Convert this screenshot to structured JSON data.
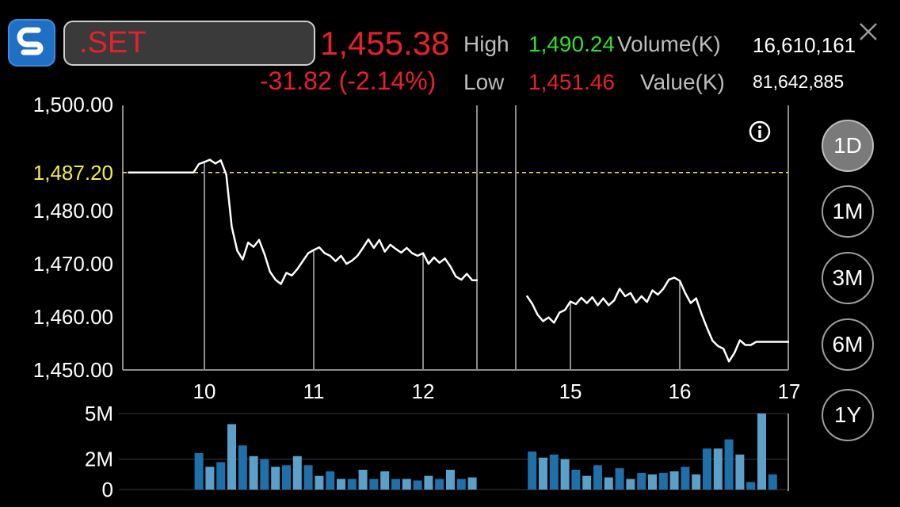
{
  "header": {
    "symbol": ".SET",
    "last_price": "1,455.38",
    "change": "-31.82 (-2.14%)",
    "high_label": "High",
    "high_value": "1,490.24",
    "low_label": "Low",
    "low_value": "1,451.46",
    "volume_label": "Volume(K)",
    "volume_value": "16,610,161",
    "value_label": "Value(K)",
    "value_value": "81,642,885"
  },
  "periods": [
    {
      "label": "1D",
      "active": true
    },
    {
      "label": "1M",
      "active": false
    },
    {
      "label": "3M",
      "active": false
    },
    {
      "label": "6M",
      "active": false
    },
    {
      "label": "1Y",
      "active": false
    }
  ],
  "colors": {
    "down": "#e8202a",
    "up": "#2ee02e",
    "reference": "#f2ec4c",
    "line": "#ffffff",
    "volume_dark": "#1f6fa8",
    "volume_light": "#5aa0c8"
  },
  "chart_data": [
    {
      "type": "line",
      "y_ticks": [
        "1,500.00",
        "1,480.00",
        "1,470.00",
        "1,460.00",
        "1,450.00"
      ],
      "y_tick_values": [
        1500,
        1480,
        1470,
        1460,
        1450
      ],
      "ylim": [
        1450,
        1500
      ],
      "x_ticks": [
        "10",
        "11",
        "12",
        "15",
        "16",
        "17"
      ],
      "reference_value": 1487.2,
      "reference_label": "1,487.20",
      "session1": [
        [
          9.3,
          1487.2
        ],
        [
          9.9,
          1487.2
        ],
        [
          9.95,
          1488.8
        ],
        [
          10.0,
          1489.2
        ],
        [
          10.05,
          1489.6
        ],
        [
          10.1,
          1488.9
        ],
        [
          10.15,
          1489.5
        ],
        [
          10.2,
          1486.8
        ],
        [
          10.25,
          1477.0
        ],
        [
          10.3,
          1472.5
        ],
        [
          10.35,
          1470.8
        ],
        [
          10.4,
          1474.0
        ],
        [
          10.45,
          1473.2
        ],
        [
          10.5,
          1474.5
        ],
        [
          10.55,
          1471.8
        ],
        [
          10.6,
          1468.5
        ],
        [
          10.65,
          1467.0
        ],
        [
          10.7,
          1466.2
        ],
        [
          10.75,
          1468.3
        ],
        [
          10.8,
          1467.8
        ],
        [
          10.85,
          1469.0
        ],
        [
          10.9,
          1470.5
        ],
        [
          10.95,
          1472.0
        ],
        [
          11.0,
          1472.6
        ],
        [
          11.05,
          1473.1
        ],
        [
          11.1,
          1472.0
        ],
        [
          11.15,
          1471.5
        ],
        [
          11.2,
          1470.5
        ],
        [
          11.25,
          1471.5
        ],
        [
          11.3,
          1470.0
        ],
        [
          11.35,
          1470.6
        ],
        [
          11.4,
          1471.5
        ],
        [
          11.45,
          1473.0
        ],
        [
          11.5,
          1474.6
        ],
        [
          11.55,
          1473.0
        ],
        [
          11.6,
          1474.5
        ],
        [
          11.65,
          1472.3
        ],
        [
          11.7,
          1473.6
        ],
        [
          11.75,
          1472.8
        ],
        [
          11.8,
          1472.1
        ],
        [
          11.85,
          1473.0
        ],
        [
          11.9,
          1472.0
        ],
        [
          11.95,
          1471.5
        ],
        [
          12.0,
          1472.0
        ],
        [
          12.05,
          1470.0
        ],
        [
          12.1,
          1471.2
        ],
        [
          12.15,
          1470.2
        ],
        [
          12.2,
          1471.0
        ],
        [
          12.25,
          1469.5
        ],
        [
          12.3,
          1467.6
        ],
        [
          12.35,
          1467.0
        ],
        [
          12.4,
          1468.1
        ],
        [
          12.45,
          1466.9
        ],
        [
          12.5,
          1466.9
        ]
      ],
      "session2": [
        [
          14.6,
          1464.0
        ],
        [
          14.65,
          1462.5
        ],
        [
          14.7,
          1460.4
        ],
        [
          14.75,
          1459.2
        ],
        [
          14.8,
          1459.9
        ],
        [
          14.85,
          1458.9
        ],
        [
          14.9,
          1460.8
        ],
        [
          14.95,
          1461.3
        ],
        [
          15.0,
          1462.9
        ],
        [
          15.05,
          1462.4
        ],
        [
          15.1,
          1463.6
        ],
        [
          15.15,
          1462.6
        ],
        [
          15.2,
          1463.7
        ],
        [
          15.25,
          1462.2
        ],
        [
          15.3,
          1463.5
        ],
        [
          15.35,
          1462.2
        ],
        [
          15.4,
          1463.1
        ],
        [
          15.45,
          1465.3
        ],
        [
          15.5,
          1463.9
        ],
        [
          15.55,
          1464.5
        ],
        [
          15.6,
          1462.7
        ],
        [
          15.65,
          1463.9
        ],
        [
          15.7,
          1462.8
        ],
        [
          15.75,
          1465.0
        ],
        [
          15.8,
          1464.2
        ],
        [
          15.85,
          1465.3
        ],
        [
          15.9,
          1467.0
        ],
        [
          15.95,
          1467.4
        ],
        [
          16.0,
          1466.8
        ],
        [
          16.05,
          1464.5
        ],
        [
          16.1,
          1462.6
        ],
        [
          16.15,
          1463.5
        ],
        [
          16.2,
          1460.5
        ],
        [
          16.25,
          1457.9
        ],
        [
          16.3,
          1455.5
        ],
        [
          16.35,
          1454.5
        ],
        [
          16.4,
          1454.0
        ],
        [
          16.45,
          1451.6
        ],
        [
          16.5,
          1453.2
        ],
        [
          16.55,
          1455.6
        ],
        [
          16.6,
          1454.7
        ],
        [
          16.65,
          1454.7
        ],
        [
          16.7,
          1455.3
        ],
        [
          17.0,
          1455.3
        ]
      ]
    },
    {
      "type": "bar",
      "y_ticks": [
        "5M",
        "2M",
        "0"
      ],
      "bars": [
        [
          9.95,
          2.4,
          "dark"
        ],
        [
          10.05,
          1.5,
          "light"
        ],
        [
          10.15,
          1.8,
          "dark"
        ],
        [
          10.25,
          4.3,
          "light"
        ],
        [
          10.35,
          2.9,
          "dark"
        ],
        [
          10.45,
          2.2,
          "light"
        ],
        [
          10.55,
          2.0,
          "dark"
        ],
        [
          10.65,
          1.5,
          "light"
        ],
        [
          10.75,
          1.6,
          "dark"
        ],
        [
          10.85,
          2.2,
          "light"
        ],
        [
          10.95,
          1.6,
          "dark"
        ],
        [
          11.05,
          0.9,
          "light"
        ],
        [
          11.15,
          1.2,
          "dark"
        ],
        [
          11.25,
          0.7,
          "light"
        ],
        [
          11.35,
          0.7,
          "dark"
        ],
        [
          11.45,
          1.3,
          "light"
        ],
        [
          11.55,
          0.7,
          "dark"
        ],
        [
          11.65,
          1.2,
          "light"
        ],
        [
          11.75,
          0.7,
          "dark"
        ],
        [
          11.85,
          0.7,
          "light"
        ],
        [
          11.95,
          0.6,
          "dark"
        ],
        [
          12.05,
          0.9,
          "light"
        ],
        [
          12.15,
          0.7,
          "dark"
        ],
        [
          12.25,
          1.3,
          "light"
        ],
        [
          12.35,
          0.7,
          "dark"
        ],
        [
          12.45,
          0.8,
          "light"
        ],
        [
          14.65,
          2.5,
          "dark"
        ],
        [
          14.75,
          2.1,
          "light"
        ],
        [
          14.85,
          2.3,
          "dark"
        ],
        [
          14.95,
          2.0,
          "light"
        ],
        [
          15.05,
          1.3,
          "dark"
        ],
        [
          15.15,
          0.9,
          "light"
        ],
        [
          15.25,
          1.6,
          "dark"
        ],
        [
          15.35,
          0.8,
          "light"
        ],
        [
          15.45,
          1.4,
          "dark"
        ],
        [
          15.55,
          0.7,
          "light"
        ],
        [
          15.65,
          1.1,
          "dark"
        ],
        [
          15.75,
          1.0,
          "light"
        ],
        [
          15.85,
          1.1,
          "dark"
        ],
        [
          15.95,
          1.2,
          "light"
        ],
        [
          16.05,
          1.5,
          "dark"
        ],
        [
          16.15,
          1.0,
          "light"
        ],
        [
          16.25,
          2.7,
          "dark"
        ],
        [
          16.35,
          2.7,
          "light"
        ],
        [
          16.45,
          3.3,
          "dark"
        ],
        [
          16.55,
          2.3,
          "light"
        ],
        [
          16.65,
          0.5,
          "dark"
        ],
        [
          16.75,
          5.0,
          "light"
        ],
        [
          16.85,
          1.0,
          "dark"
        ]
      ]
    }
  ]
}
